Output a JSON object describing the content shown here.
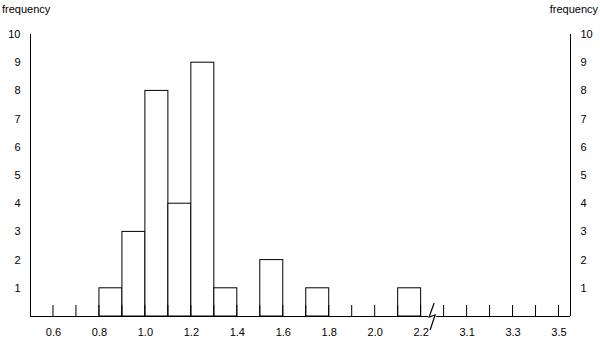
{
  "chart_data": {
    "type": "histogram",
    "ylabel": "frequency",
    "y2label": "frequency",
    "bins": [
      0.8,
      0.9,
      1.0,
      1.1,
      1.2,
      1.3,
      1.4,
      1.5,
      1.6,
      1.7,
      1.8,
      1.9,
      2.0,
      2.1,
      2.2
    ],
    "values": [
      1,
      3,
      8,
      4,
      9,
      1,
      0,
      2,
      0,
      1,
      0,
      0,
      0,
      1
    ],
    "color": "#ffffff",
    "xlim": [
      0.5,
      3.55
    ],
    "xbreak": [
      2.25,
      2.95
    ],
    "xticks": [
      0.6,
      0.8,
      {
        "value": 1,
        "label": "1.0"
      },
      1.2,
      1.4,
      1.6,
      1.8,
      {
        "value": 2,
        "label": "2.0"
      },
      2.2,
      3.1,
      3.3,
      3.5
    ],
    "xminorticks": [
      0.7,
      0.9,
      1.1,
      1.3,
      1.5,
      1.7,
      1.9,
      2.1,
      3.0,
      3.2,
      3.4
    ],
    "ylim": [
      0,
      10
    ],
    "yticks": [
      1,
      2,
      3,
      4,
      5,
      6,
      7,
      8,
      9,
      10
    ],
    "y2ticks": [
      1,
      2,
      3,
      4,
      5,
      6,
      7,
      8,
      9,
      10
    ]
  }
}
